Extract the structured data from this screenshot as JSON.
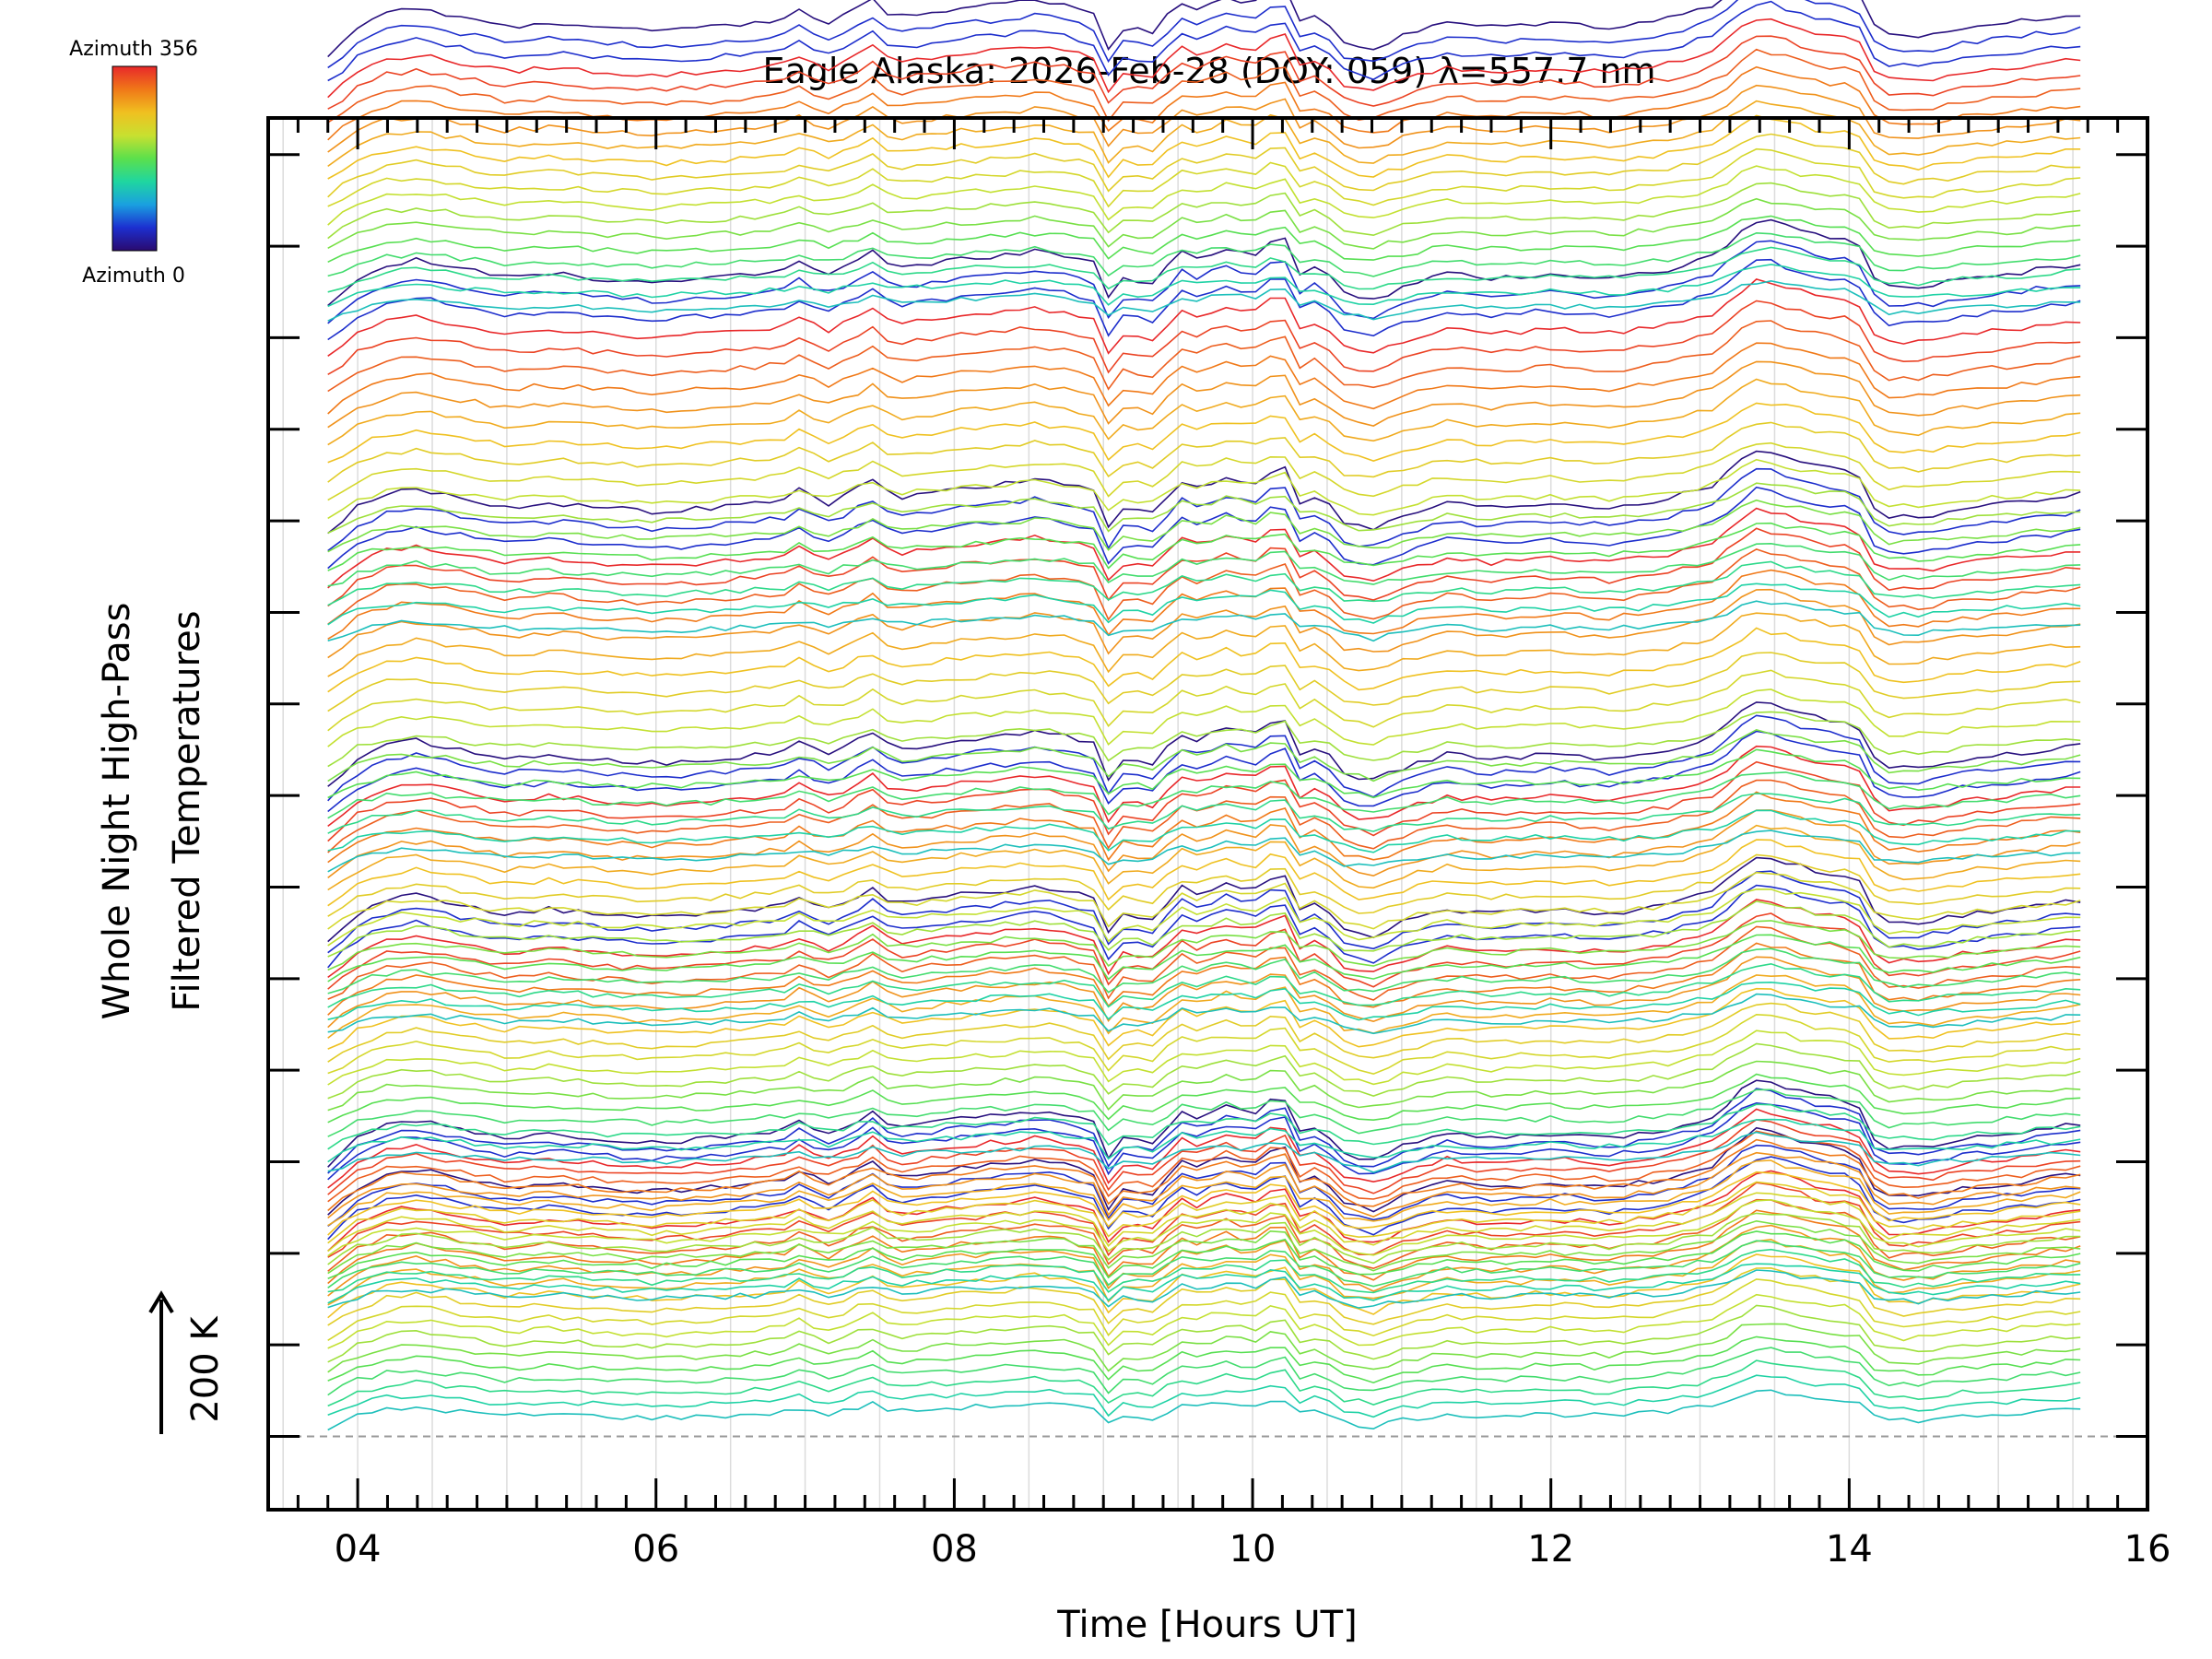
{
  "chart_data": {
    "type": "line",
    "title": "Eagle Alaska: 2026-Feb-28 (DOY: 059) λ=557.7 nm",
    "xlabel": "Time [Hours UT]",
    "ylabel_line1": "Whole Night High-Pass",
    "ylabel_line2": "Filtered Temperatures",
    "scale_label": "200 K",
    "xlim": [
      3.4,
      16.0
    ],
    "x_ticks": [
      4,
      6,
      8,
      10,
      12,
      14,
      16
    ],
    "x_tick_labels": [
      "04",
      "06",
      "08",
      "10",
      "12",
      "14",
      "16"
    ],
    "ylim": [
      -0.8,
      14.4
    ],
    "y_major_ticks": [
      0,
      1,
      2,
      3,
      4,
      5,
      6,
      7,
      8,
      9,
      10,
      11,
      12,
      13,
      14
    ],
    "baseline_value": 0,
    "scale_arrow_K": 200,
    "colorbar": {
      "label_top": "Azimuth 356",
      "label_bottom": "Azimuth 0",
      "min": 0,
      "max": 356,
      "colors": [
        "#2a0a6e",
        "#1c2fd0",
        "#1aa0e0",
        "#1fd6a0",
        "#5be04c",
        "#c8e030",
        "#f0c020",
        "#f07818",
        "#e8282a"
      ]
    },
    "time_range_hours": [
      3.8,
      15.55
    ],
    "num_blocks": 7,
    "curves_per_block": 20,
    "block_base_offsets": [
      0.2,
      1.5,
      3.0,
      4.5,
      6.3,
      8.8,
      12.3
    ],
    "block_spacing": [
      0.13,
      0.09,
      0.14,
      0.15,
      0.2,
      0.2,
      0.16
    ],
    "base_profile": {
      "t": [
        3.8,
        4.0,
        4.2,
        4.4,
        4.7,
        5.0,
        5.3,
        5.6,
        6.0,
        6.4,
        6.7,
        6.9,
        7.0,
        7.1,
        7.3,
        7.45,
        7.6,
        7.8,
        8.0,
        8.3,
        8.55,
        8.75,
        8.95,
        9.05,
        9.15,
        9.3,
        9.4,
        9.5,
        9.65,
        9.8,
        10.0,
        10.2,
        10.3,
        10.45,
        10.6,
        10.8,
        11.0,
        11.3,
        11.6,
        12.0,
        12.4,
        12.8,
        13.1,
        13.3,
        13.4,
        13.6,
        13.8,
        14.05,
        14.2,
        14.5,
        14.8,
        15.1,
        15.3,
        15.55
      ],
      "v": [
        -0.25,
        0.05,
        0.2,
        0.25,
        0.15,
        0.05,
        0.1,
        0.05,
        0.0,
        0.05,
        0.1,
        0.15,
        0.3,
        0.05,
        0.2,
        0.35,
        0.15,
        0.2,
        0.25,
        0.3,
        0.35,
        0.3,
        0.2,
        -0.25,
        0.1,
        -0.05,
        0.1,
        0.35,
        0.25,
        0.4,
        0.3,
        0.55,
        0.1,
        0.2,
        -0.1,
        -0.2,
        -0.05,
        0.1,
        0.05,
        0.1,
        0.05,
        0.15,
        0.3,
        0.6,
        0.7,
        0.6,
        0.5,
        0.45,
        -0.05,
        -0.05,
        0.05,
        0.1,
        0.15,
        0.2
      ]
    }
  }
}
